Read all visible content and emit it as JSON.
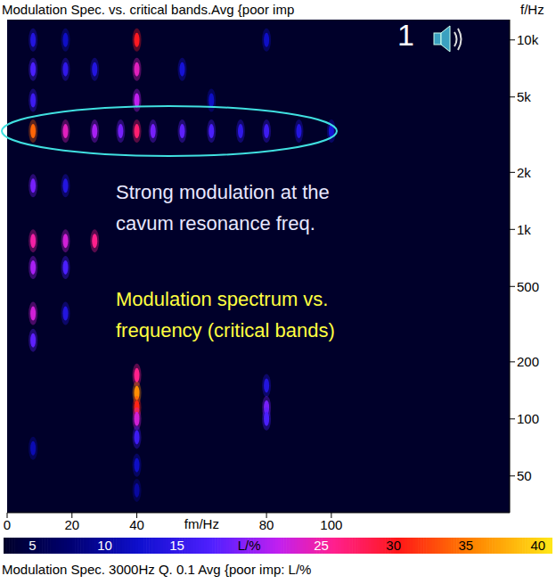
{
  "chart_data": {
    "type": "heatmap",
    "title": "Modulation Spec. vs. critical bands.Avg {poor imp",
    "x_label": "fm/Hz",
    "y_label": "f/Hz",
    "footer": "Modulation Spec. 3000Hz Q. 0.1 Avg {poor imp: L/%",
    "log": "y",
    "xlim": [
      0,
      155
    ],
    "xticks": [
      0,
      20,
      40,
      80,
      100
    ],
    "ylim": [
      32,
      12800
    ],
    "yticks": [
      50,
      100,
      200,
      500,
      {
        "value": 1000,
        "label": "1k"
      },
      {
        "value": 2000,
        "label": "2k"
      },
      {
        "value": 5000,
        "label": "5k"
      },
      {
        "value": 10000,
        "label": "10k"
      }
    ],
    "cells": [
      [
        8,
        10000,
        14
      ],
      [
        18,
        10000,
        12
      ],
      [
        40,
        10000,
        30
      ],
      [
        80,
        10000,
        12
      ],
      [
        8,
        7000,
        17
      ],
      [
        18,
        7000,
        15
      ],
      [
        27,
        7000,
        14
      ],
      [
        40,
        7000,
        24
      ],
      [
        54,
        7000,
        13
      ],
      [
        8,
        4800,
        16
      ],
      [
        40,
        4800,
        22
      ],
      [
        63,
        4800,
        12
      ],
      [
        8,
        3300,
        34
      ],
      [
        18,
        3300,
        24
      ],
      [
        27,
        3300,
        21
      ],
      [
        35,
        3300,
        19
      ],
      [
        40,
        3300,
        27
      ],
      [
        45,
        3300,
        19
      ],
      [
        54,
        3300,
        18
      ],
      [
        63,
        3300,
        17
      ],
      [
        72,
        3300,
        15
      ],
      [
        80,
        3300,
        16
      ],
      [
        90,
        3300,
        14
      ],
      [
        100,
        3300,
        13
      ],
      [
        8,
        1700,
        19
      ],
      [
        18,
        1700,
        14
      ],
      [
        8,
        870,
        25
      ],
      [
        18,
        870,
        23
      ],
      [
        27,
        870,
        26
      ],
      [
        8,
        630,
        21
      ],
      [
        18,
        630,
        17
      ],
      [
        8,
        360,
        23
      ],
      [
        18,
        360,
        14
      ],
      [
        8,
        260,
        18
      ],
      [
        40,
        170,
        26
      ],
      [
        40,
        137,
        36
      ],
      [
        40,
        115,
        31
      ],
      [
        40,
        100,
        23
      ],
      [
        40,
        80,
        16
      ],
      [
        40,
        57,
        12
      ],
      [
        40,
        42,
        10
      ],
      [
        80,
        150,
        14
      ],
      [
        80,
        115,
        19
      ],
      [
        80,
        100,
        17
      ],
      [
        8,
        70,
        11
      ]
    ],
    "colorbar": {
      "range": [
        3,
        41
      ],
      "ticks": [
        5,
        10,
        15,
        {
          "value": 20,
          "label": "L/%"
        },
        25,
        30,
        35,
        40
      ]
    },
    "annotations": [
      {
        "text": "1",
        "color": "#ffffff"
      },
      {
        "text": "Strong modulation at the cavum resonance freq.",
        "color": "#e8e8ff"
      },
      {
        "text": "Modulation spectrum vs. frequency (critical bands)",
        "color": "#ffff40"
      }
    ]
  }
}
